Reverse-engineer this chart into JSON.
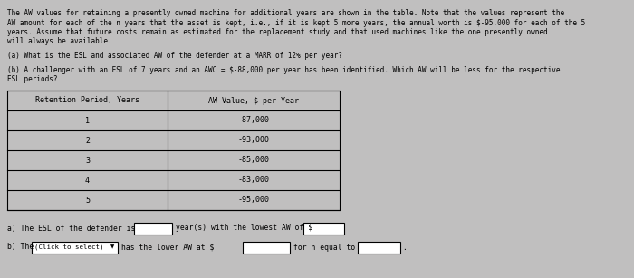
{
  "paragraph": "The AW values for retaining a presently owned machine for additional years are shown in the table. Note that the values represent the\nAW amount for each of the n years that the asset is kept, i.e., if it is kept 5 more years, the annual worth is $-95,000 for each of the 5\nyears. Assume that future costs remain as estimated for the replacement study and that used machines like the one presently owned\nwill always be available.",
  "question_a": "(a) What is the ESL and associated AW of the defender at a MARR of 12% per year?",
  "question_b": "(b) A challenger with an ESL of 7 years and an AWC = $-88,000 per year has been identified. Which AW will be less for the respective\nESL periods?",
  "col1_header": "Retention Period, Years",
  "col2_header": "AW Value, $ per Year",
  "rows": [
    [
      "1",
      "-87,000"
    ],
    [
      "2",
      "-93,000"
    ],
    [
      "3",
      "-85,000"
    ],
    [
      "4",
      "-83,000"
    ],
    [
      "5",
      "-95,000"
    ]
  ],
  "answer_a_prefix": "a) The ESL of the defender is",
  "answer_a_mid": "year(s) with the lowest AW of $",
  "answer_b_prefix": "b) The",
  "answer_b_dropdown": "(Click to select)",
  "answer_b_mid": "has the lower AW at $",
  "answer_b_suffix": "for n equal to",
  "bg_color": "#c0bfbf",
  "text_color": "#000000",
  "font_size_body": 5.5,
  "font_size_table_header": 6.0,
  "font_size_table_data": 6.0,
  "font_size_answer": 5.8
}
